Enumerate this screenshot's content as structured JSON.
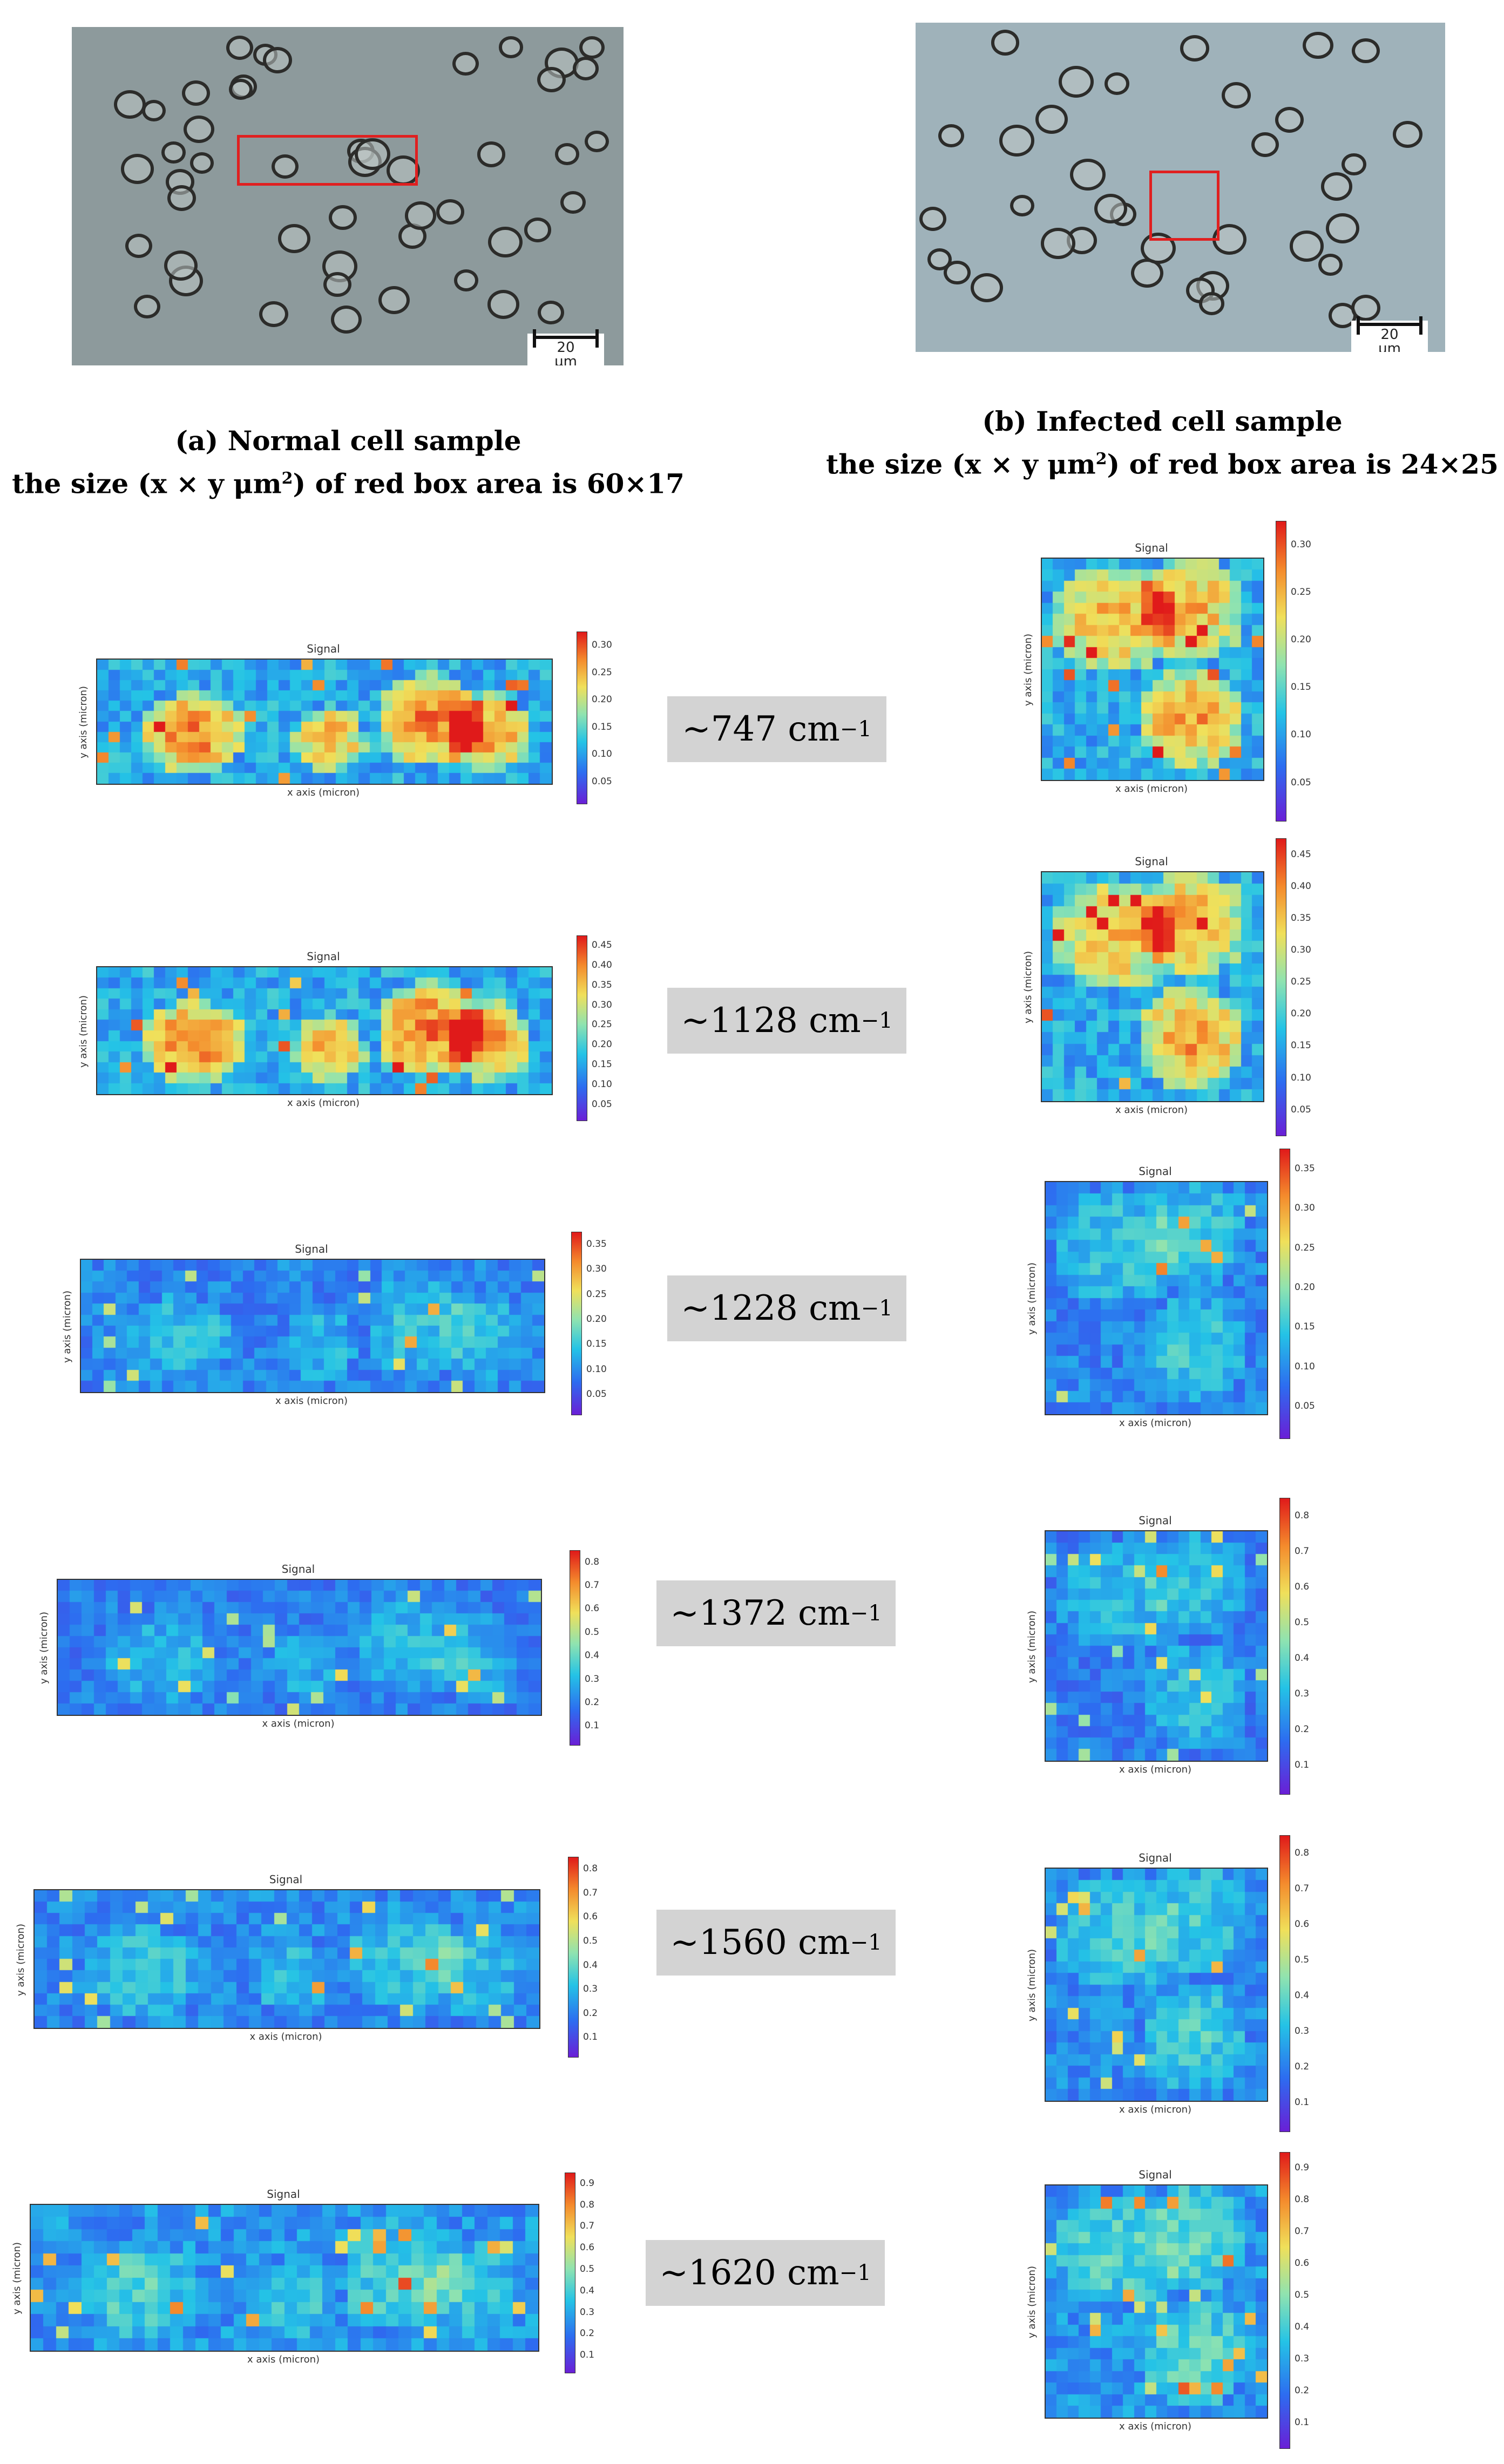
{
  "panels": {
    "normal": {
      "caption_line1": "(a)   Normal cell sample",
      "caption_line2_pre": "the size (x × y μm",
      "caption_line2_sup": "2",
      "caption_line2_post": ") of red box area is 60×17",
      "scale_value": "20",
      "scale_unit": "μm"
    },
    "infected": {
      "caption_line1": "(b) Infected cell sample",
      "caption_line2_pre": "the size (x × y μm",
      "caption_line2_sup": "2",
      "caption_line2_post": ") of red box area is 24×25",
      "scale_value": "20",
      "scale_unit": "μm"
    }
  },
  "maps": {
    "title": "Signal",
    "xlabel": "x axis (micron)",
    "ylabel": "y axis (micron)"
  },
  "rows": [
    {
      "label": "~747 cm",
      "normal_ticks": [
        "0.30",
        "0.25",
        "0.20",
        "0.15",
        "0.10",
        "0.05"
      ],
      "infected_ticks": [
        "0.30",
        "0.25",
        "0.20",
        "0.15",
        "0.10",
        "0.05"
      ]
    },
    {
      "label": "~1128 cm",
      "normal_ticks": [
        "0.45",
        "0.40",
        "0.35",
        "0.30",
        "0.25",
        "0.20",
        "0.15",
        "0.10",
        "0.05"
      ],
      "infected_ticks": [
        "0.45",
        "0.40",
        "0.35",
        "0.30",
        "0.25",
        "0.20",
        "0.15",
        "0.10",
        "0.05"
      ]
    },
    {
      "label": "~1228 cm",
      "normal_ticks": [
        "0.35",
        "0.30",
        "0.25",
        "0.20",
        "0.15",
        "0.10",
        "0.05"
      ],
      "infected_ticks": [
        "0.35",
        "0.30",
        "0.25",
        "0.20",
        "0.15",
        "0.10",
        "0.05"
      ]
    },
    {
      "label": "~1372 cm",
      "normal_ticks": [
        "0.8",
        "0.7",
        "0.6",
        "0.5",
        "0.4",
        "0.3",
        "0.2",
        "0.1"
      ],
      "infected_ticks": [
        "0.8",
        "0.7",
        "0.6",
        "0.5",
        "0.4",
        "0.3",
        "0.2",
        "0.1"
      ]
    },
    {
      "label": "~1560 cm",
      "normal_ticks": [
        "0.8",
        "0.7",
        "0.6",
        "0.5",
        "0.4",
        "0.3",
        "0.2",
        "0.1"
      ],
      "infected_ticks": [
        "0.8",
        "0.7",
        "0.6",
        "0.5",
        "0.4",
        "0.3",
        "0.2",
        "0.1"
      ]
    },
    {
      "label": "~1620 cm",
      "normal_ticks": [
        "0.9",
        "0.8",
        "0.7",
        "0.6",
        "0.5",
        "0.4",
        "0.3",
        "0.2",
        "0.1"
      ],
      "infected_ticks": [
        "0.9",
        "0.8",
        "0.7",
        "0.6",
        "0.5",
        "0.4",
        "0.3",
        "0.2",
        "0.1"
      ]
    }
  ],
  "unit_sup": "−1",
  "colors": {
    "red_box": "#e02020",
    "label_bg": "#d3d3d3"
  }
}
